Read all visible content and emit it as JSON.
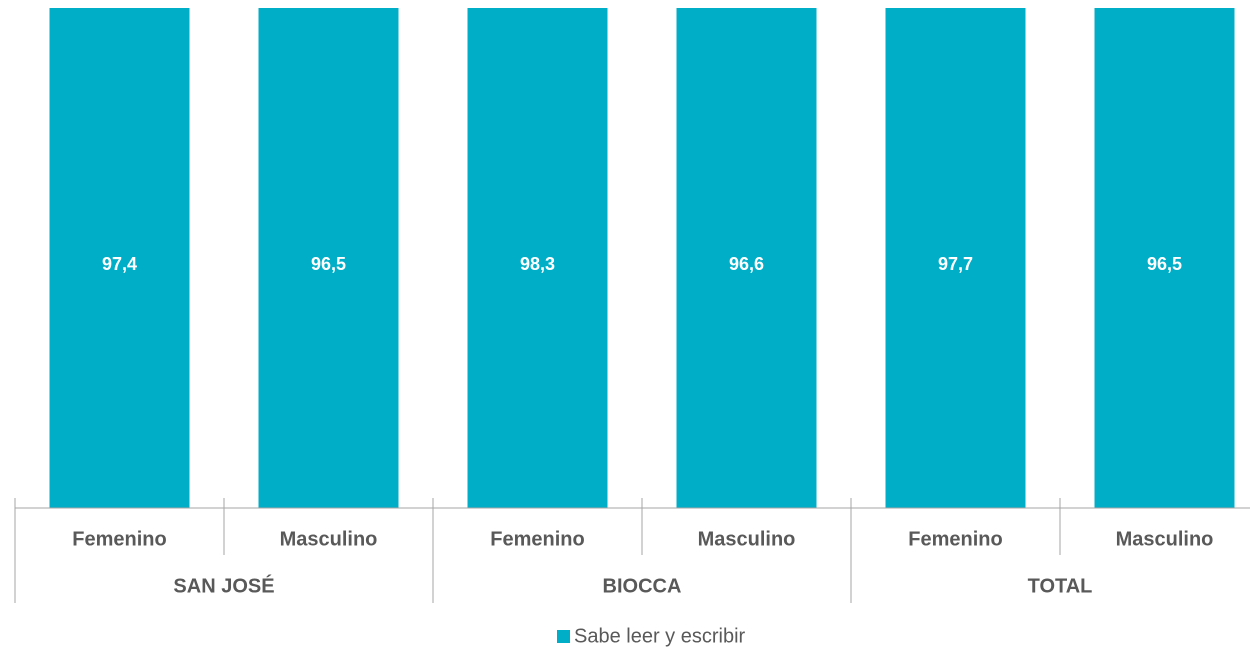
{
  "chart_data": {
    "type": "bar",
    "categories": [
      "Femenino",
      "Masculino",
      "Femenino",
      "Masculino",
      "Femenino",
      "Masculino"
    ],
    "groups": [
      "SAN JOSÉ",
      "BIOCCA",
      "TOTAL"
    ],
    "series": [
      {
        "name": "Sabe leer y escribir",
        "color": "#00aec7",
        "values": [
          97.4,
          96.5,
          98.3,
          96.6,
          97.7,
          96.5
        ],
        "value_labels": [
          "97,4",
          "96,5",
          "98,3",
          "96,6",
          "97,7",
          "96,5"
        ]
      }
    ],
    "ylim": [
      0,
      96
    ],
    "legend": "bottom"
  }
}
